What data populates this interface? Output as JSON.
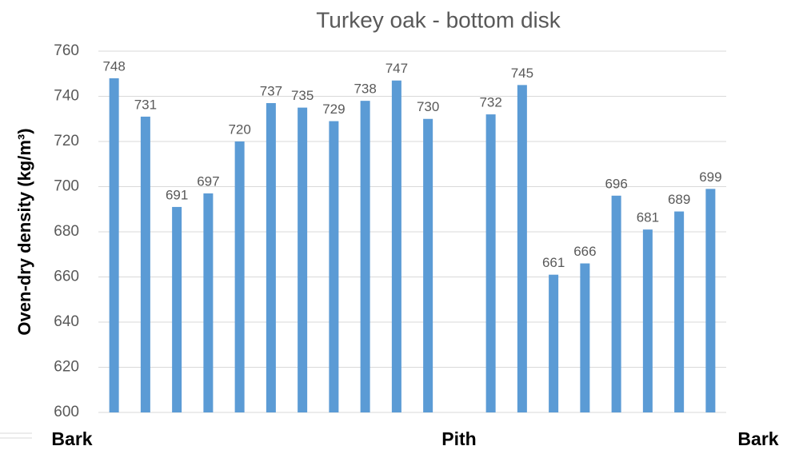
{
  "chart_data": {
    "type": "bar",
    "title": "Turkey oak - bottom disk",
    "y_label": "Oven-dry density (kg/m³)",
    "categories": [
      null,
      null,
      null,
      null,
      null,
      null,
      null,
      null,
      null,
      null,
      null,
      null,
      null,
      null,
      null,
      null,
      null,
      null,
      null,
      null
    ],
    "values": [
      748,
      731,
      691,
      697,
      720,
      737,
      735,
      729,
      738,
      747,
      730,
      null,
      732,
      745,
      661,
      666,
      696,
      681,
      689,
      699
    ],
    "color": "#5b9bd5",
    "ylim": [
      600,
      760
    ],
    "yticks": [
      600,
      620,
      640,
      660,
      680,
      700,
      720,
      740,
      760
    ],
    "grid": true,
    "annotations": [
      "Bark",
      "Pith",
      "Bark"
    ]
  }
}
